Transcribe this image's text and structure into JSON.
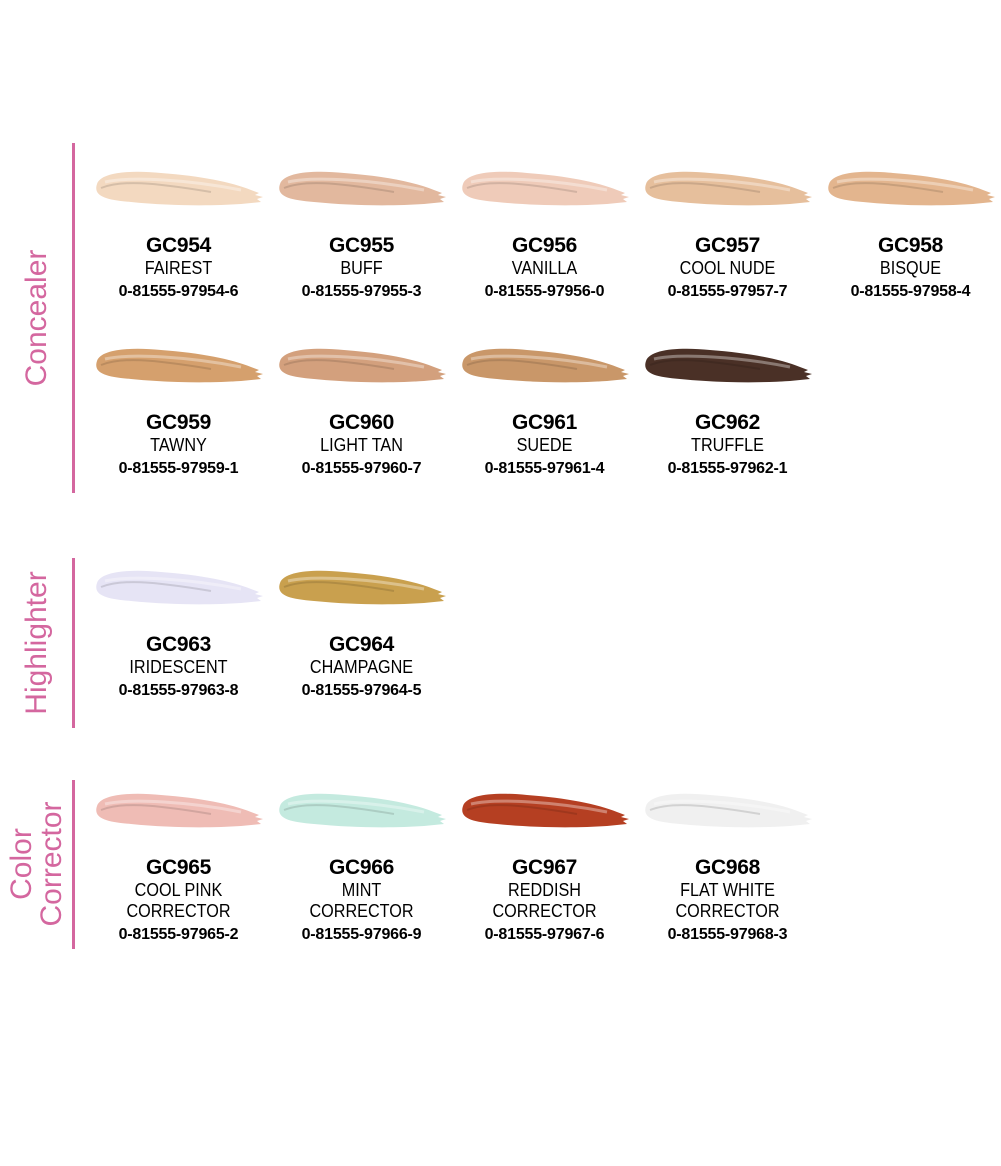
{
  "sections": [
    {
      "label": "Concealer",
      "products": [
        {
          "code": "GC954",
          "name": [
            "FAIREST"
          ],
          "upc": "0-81555-97954-6",
          "color": "#f3d9c0"
        },
        {
          "code": "GC955",
          "name": [
            "BUFF"
          ],
          "upc": "0-81555-97955-3",
          "color": "#e2b89e"
        },
        {
          "code": "GC956",
          "name": [
            "VANILLA"
          ],
          "upc": "0-81555-97956-0",
          "color": "#efcbb9"
        },
        {
          "code": "GC957",
          "name": [
            "COOL NUDE"
          ],
          "upc": "0-81555-97957-7",
          "color": "#e6bf9c"
        },
        {
          "code": "GC958",
          "name": [
            "BISQUE"
          ],
          "upc": "0-81555-97958-4",
          "color": "#e3b58e"
        },
        {
          "code": "GC959",
          "name": [
            "TAWNY"
          ],
          "upc": "0-81555-97959-1",
          "color": "#d5a06d"
        },
        {
          "code": "GC960",
          "name": [
            "LIGHT TAN"
          ],
          "upc": "0-81555-97960-7",
          "color": "#d3a07d"
        },
        {
          "code": "GC961",
          "name": [
            "SUEDE"
          ],
          "upc": "0-81555-97961-4",
          "color": "#c99769"
        },
        {
          "code": "GC962",
          "name": [
            "TRUFFLE"
          ],
          "upc": "0-81555-97962-1",
          "color": "#4a3026"
        }
      ]
    },
    {
      "label": "Highlighter",
      "products": [
        {
          "code": "GC963",
          "name": [
            "IRIDESCENT"
          ],
          "upc": "0-81555-97963-8",
          "color": "#e6e4f5"
        },
        {
          "code": "GC964",
          "name": [
            "CHAMPAGNE"
          ],
          "upc": "0-81555-97964-5",
          "color": "#c9a04e"
        }
      ]
    },
    {
      "label": [
        "Color",
        "Corrector"
      ],
      "products": [
        {
          "code": "GC965",
          "name": [
            "COOL PINK",
            "CORRECTOR"
          ],
          "upc": "0-81555-97965-2",
          "color": "#efbcb5"
        },
        {
          "code": "GC966",
          "name": [
            "MINT",
            "CORRECTOR"
          ],
          "upc": "0-81555-97966-9",
          "color": "#c4eadf"
        },
        {
          "code": "GC967",
          "name": [
            "REDDISH",
            "CORRECTOR"
          ],
          "upc": "0-81555-97967-6",
          "color": "#b53f22"
        },
        {
          "code": "GC968",
          "name": [
            "FLAT WHITE",
            "CORRECTOR"
          ],
          "upc": "0-81555-97968-3",
          "color": "#f0f0f0"
        }
      ]
    }
  ],
  "accent_color": "#d4679f"
}
